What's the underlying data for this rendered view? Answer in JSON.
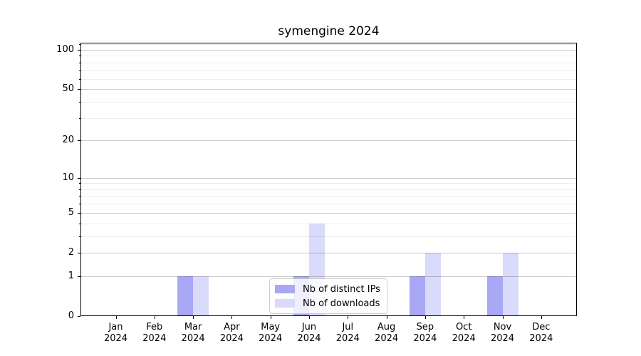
{
  "chart_data": {
    "type": "bar",
    "title": "symengine 2024",
    "categories": [
      {
        "month": "Jan",
        "year": "2024"
      },
      {
        "month": "Feb",
        "year": "2024"
      },
      {
        "month": "Mar",
        "year": "2024"
      },
      {
        "month": "Apr",
        "year": "2024"
      },
      {
        "month": "May",
        "year": "2024"
      },
      {
        "month": "Jun",
        "year": "2024"
      },
      {
        "month": "Jul",
        "year": "2024"
      },
      {
        "month": "Aug",
        "year": "2024"
      },
      {
        "month": "Sep",
        "year": "2024"
      },
      {
        "month": "Oct",
        "year": "2024"
      },
      {
        "month": "Nov",
        "year": "2024"
      },
      {
        "month": "Dec",
        "year": "2024"
      }
    ],
    "series": [
      {
        "name": "Nb of distinct IPs",
        "key": "distinct-ips",
        "color": "#a8a8f5",
        "values": [
          0,
          0,
          1,
          0,
          0,
          1,
          0,
          0,
          1,
          0,
          1,
          0
        ]
      },
      {
        "name": "Nb of downloads",
        "key": "downloads",
        "color": "#dadafa",
        "values": [
          0,
          0,
          1,
          0,
          0,
          4,
          0,
          0,
          2,
          0,
          2,
          0
        ]
      }
    ],
    "y_axis": {
      "scale": "log10(1+v)",
      "major_ticks": [
        0,
        1,
        2,
        5,
        10,
        20,
        50,
        100
      ],
      "minor_ticks": [
        3,
        4,
        6,
        7,
        8,
        9,
        30,
        40,
        60,
        70,
        80,
        90,
        110
      ],
      "ylim": [
        0,
        114
      ]
    },
    "xlabel": "",
    "ylabel": "",
    "grid": true,
    "legend": {
      "position": "lower center"
    }
  }
}
